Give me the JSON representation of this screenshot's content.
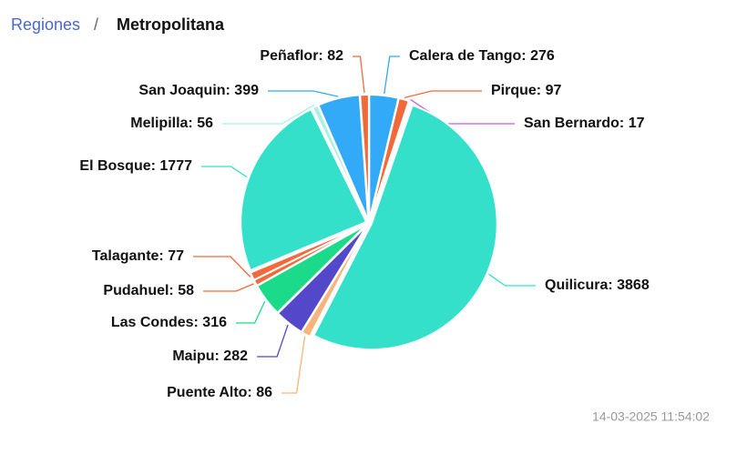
{
  "breadcrumb": {
    "items": [
      "Regiones",
      "Metropolitana"
    ],
    "separator": "/"
  },
  "chart_data": {
    "type": "pie",
    "values": [
      276,
      97,
      17,
      3868,
      86,
      282,
      316,
      58,
      77,
      1777,
      56,
      399,
      82
    ],
    "value_labels": [
      "Calera de Tango: 276",
      "Pirque: 97",
      "San Bernardo: 17",
      "Quilicura: 3868",
      "Puente Alto: 86",
      "Maipu: 282",
      "Las Condes: 316",
      "Pudahuel: 58",
      "Talagante: 77",
      "El Bosque: 1777",
      "Melipilla: 56",
      "San Joaquin: 399",
      "Peñaflor: 82"
    ],
    "colors": [
      "#33aaf7",
      "#f26a3b",
      "#c45ee0",
      "#34e0c9",
      "#f8b47c",
      "#5248c9",
      "#1bdb8b",
      "#f26a3b",
      "#f26a3b",
      "#34e0c9",
      "#a9f1e5",
      "#33aaf7",
      "#f26a3b"
    ]
  },
  "timestamp": "14-03-2025 11:54:02"
}
